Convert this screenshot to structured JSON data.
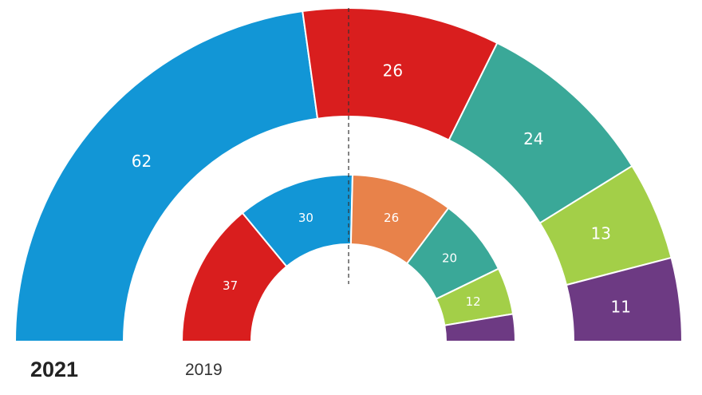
{
  "chart_data": {
    "type": "parliament-donut",
    "charts": [
      {
        "label": "2021",
        "ring": "outer",
        "segments": [
          {
            "value": 62,
            "label": "62",
            "color": "#1296d6"
          },
          {
            "value": 26,
            "label": "26",
            "color": "#d91e1e"
          },
          {
            "value": 24,
            "label": "24",
            "color": "#3aa898"
          },
          {
            "value": 13,
            "label": "13",
            "color": "#a3cf48"
          },
          {
            "value": 11,
            "label": "11",
            "color": "#6d3a83"
          }
        ]
      },
      {
        "label": "2019",
        "ring": "inner",
        "segments": [
          {
            "value": 37,
            "label": "37",
            "color": "#d91e1e"
          },
          {
            "value": 30,
            "label": "30",
            "color": "#1296d6"
          },
          {
            "value": 26,
            "label": "26",
            "color": "#e8824a"
          },
          {
            "value": 20,
            "label": "20",
            "color": "#3aa898"
          },
          {
            "value": 12,
            "label": "12",
            "color": "#a3cf48"
          },
          {
            "value": 7,
            "label": "",
            "color": "#6d3a83"
          }
        ]
      }
    ],
    "majority_line": "dashed vertical center line",
    "colors": {
      "divider": "#ffffff",
      "majority_line": "#333333"
    }
  },
  "labels": {
    "year_main": "2021",
    "year_prev": "2019"
  }
}
